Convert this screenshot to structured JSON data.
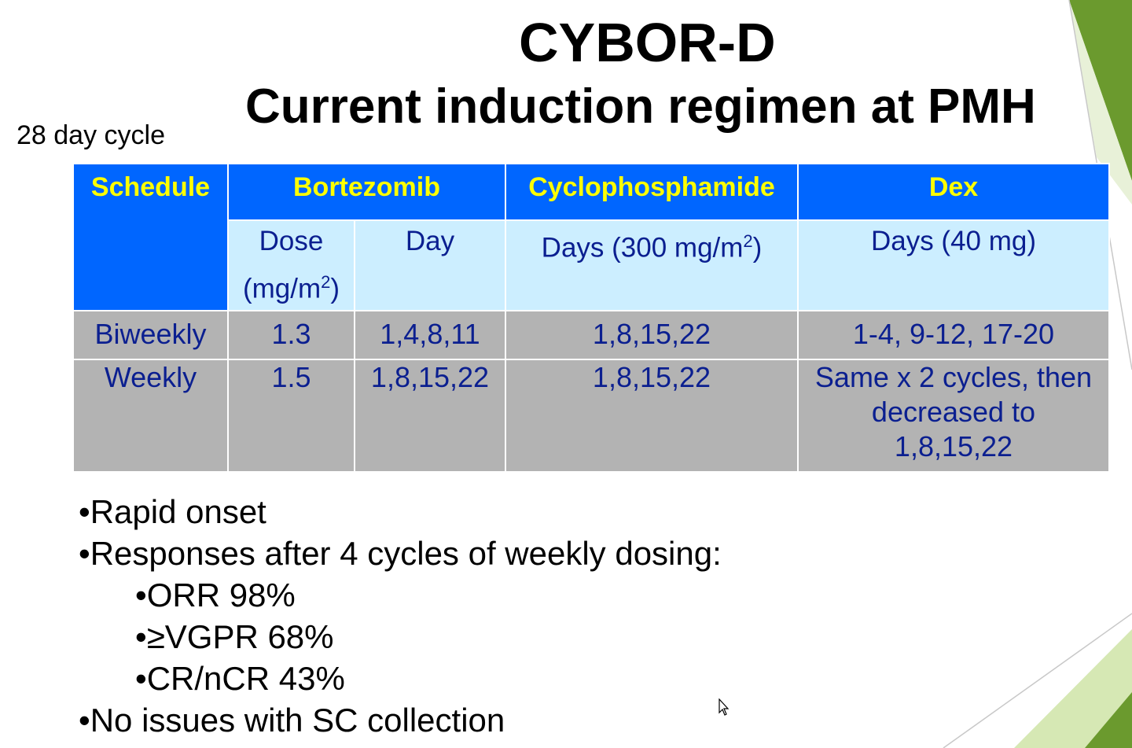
{
  "slide": {
    "title": "CYBOR-D",
    "subtitle": "Current induction regimen at PMH",
    "cycle_label": "28 day cycle"
  },
  "table": {
    "headers": {
      "schedule": "Schedule",
      "bortezomib": "Bortezomib",
      "cyclophosphamide": "Cyclophosphamide",
      "dex": "Dex"
    },
    "subheaders": {
      "dose_line1": "Dose",
      "dose_line2": "(mg/m",
      "dose_sup": "2",
      "dose_close": ")",
      "day": "Day",
      "cyclo_days": "Days (300 mg/m",
      "cyclo_sup": "2",
      "cyclo_close": ")",
      "dex_days": "Days (40 mg)"
    },
    "rows": [
      {
        "schedule": "Biweekly",
        "dose": "1.3",
        "day": "1,4,8,11",
        "cyclo": "1,8,15,22",
        "dex": [
          "1-4, 9-12, 17-20"
        ]
      },
      {
        "schedule": "Weekly",
        "dose": "1.5",
        "day": "1,8,15,22",
        "cyclo": "1,8,15,22",
        "dex": [
          "Same x 2 cycles, then",
          "decreased to",
          "1,8,15,22"
        ]
      }
    ]
  },
  "bullets": [
    {
      "text": "•Rapid onset",
      "level": 1
    },
    {
      "text": "•Responses after 4 cycles of weekly dosing:",
      "level": 1
    },
    {
      "text": "•ORR 98%",
      "level": 2
    },
    {
      "text": "•≥VGPR 68%",
      "level": 2
    },
    {
      "text": "•CR/nCR 43%",
      "level": 2
    },
    {
      "text": "•No issues with SC collection",
      "level": 1
    }
  ],
  "theme": {
    "header_blue": "#0066ff",
    "header_text": "#ffff00",
    "subheader_bg": "#cceeff",
    "cell_bg": "#b3b3b3",
    "cell_text": "#0b1f90",
    "accent_green_dark": "#6b9a2e",
    "accent_green_light": "#d6e8b4"
  }
}
